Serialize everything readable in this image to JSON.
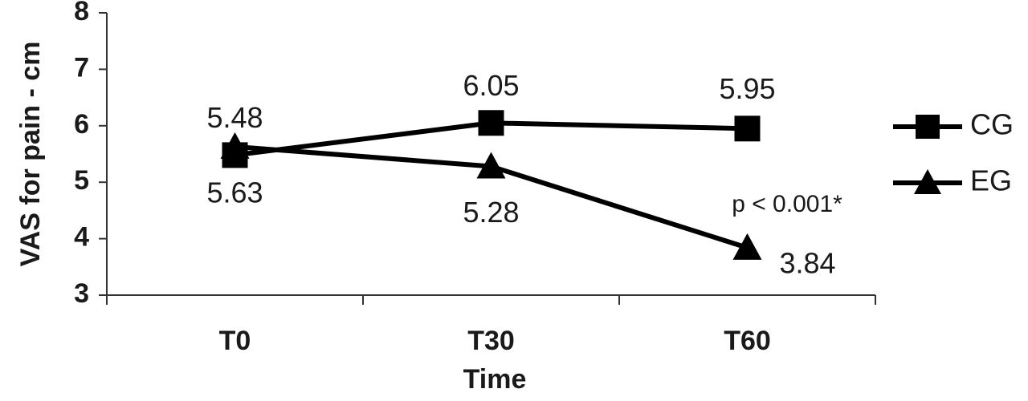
{
  "chart_data": {
    "type": "line",
    "categories": [
      "T0",
      "T30",
      "T60"
    ],
    "xlabel": "Time",
    "ylabel": "VAS for pain - cm",
    "ylim": [
      3,
      8
    ],
    "yticks": [
      "3",
      "4",
      "5",
      "6",
      "7",
      "8"
    ],
    "grid": false,
    "legend_position": "right",
    "series": [
      {
        "name": "CG",
        "marker": "square",
        "values": [
          5.48,
          6.05,
          5.95
        ],
        "labels": [
          "5.48",
          "6.05",
          "5.95"
        ]
      },
      {
        "name": "EG",
        "marker": "triangle",
        "values": [
          5.63,
          5.28,
          3.84
        ],
        "labels": [
          "5.63",
          "5.28",
          "3.84"
        ]
      }
    ],
    "annotations": [
      {
        "text": "p < 0.001*"
      }
    ],
    "colors": {
      "line": "#000000",
      "axis": "#333333",
      "text": "#1a1a1a"
    }
  }
}
